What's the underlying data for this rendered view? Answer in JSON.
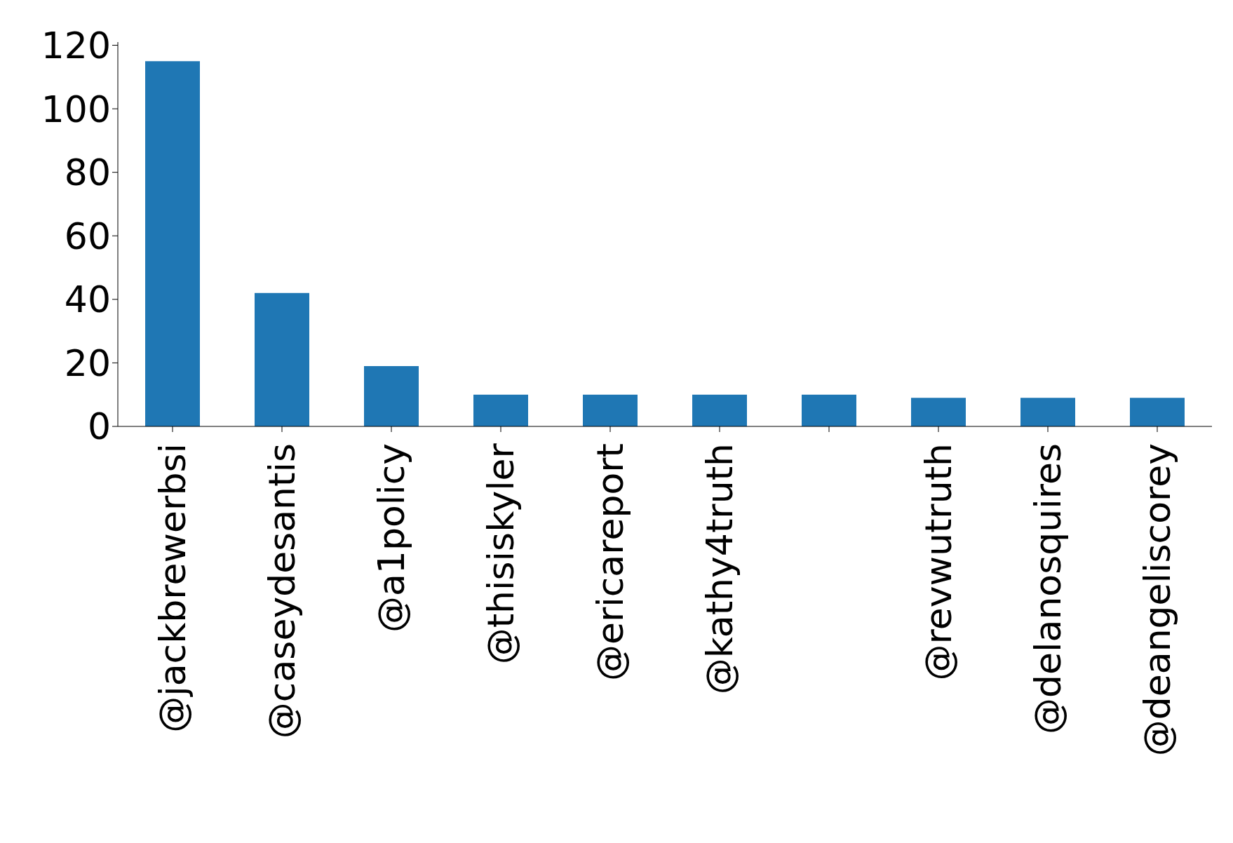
{
  "chart_data": {
    "type": "bar",
    "categories": [
      "@jackbrewerbsi",
      "@caseydesantis",
      "@a1policy",
      "@thisiskyler",
      "@ericareport",
      "@kathy4truth",
      null,
      "@revwutruth",
      "@delanosquires",
      "@deangeliscorey"
    ],
    "values": [
      115,
      42,
      19,
      10,
      10,
      10,
      10,
      9,
      9,
      9
    ],
    "color": "#1f77b4",
    "ylim": [
      0,
      121
    ],
    "yticks": [
      0,
      20,
      40,
      60,
      80,
      100,
      120
    ],
    "grid": false
  }
}
